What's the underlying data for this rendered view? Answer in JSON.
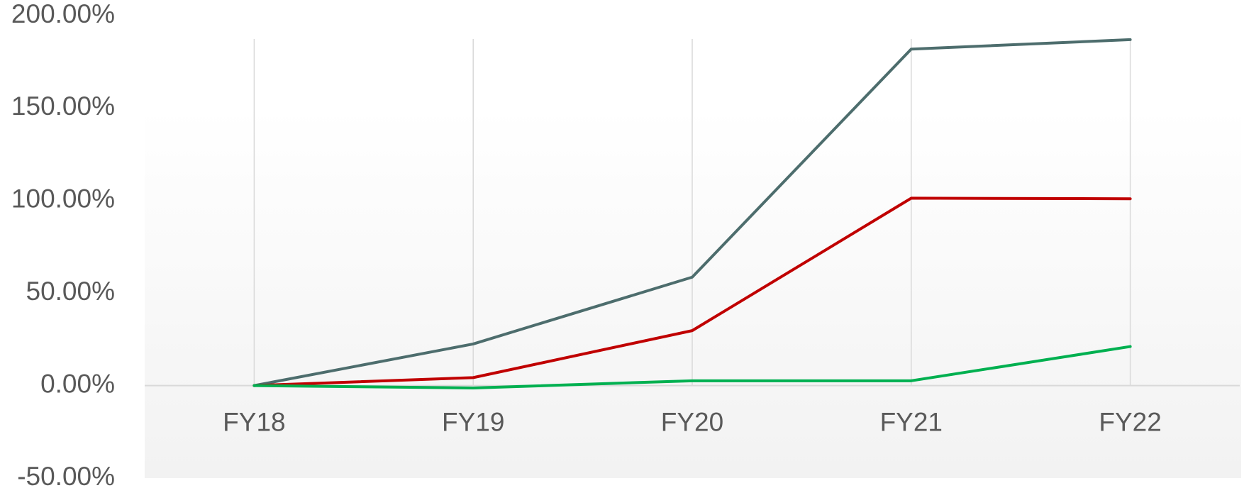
{
  "chart_data": {
    "type": "line",
    "categories": [
      "FY18",
      "FY19",
      "FY20",
      "FY21",
      "FY22"
    ],
    "series": [
      {
        "color": "#4d6d6d",
        "values": [
          0,
          22.5,
          58.6,
          181.9,
          187
        ]
      },
      {
        "color": "#c00000",
        "values": [
          0,
          4.3,
          29.7,
          101.3,
          101
        ]
      },
      {
        "color": "#00b050",
        "values": [
          0,
          -1.3,
          2.6,
          2.6,
          21.1
        ]
      }
    ],
    "ylim": [
      -50,
      200
    ],
    "yticks": [
      {
        "value": -50,
        "label": "-50.00%"
      },
      {
        "value": 0,
        "label": "0.00%"
      },
      {
        "value": 50,
        "label": "50.00%"
      },
      {
        "value": 100,
        "label": "100.00%"
      },
      {
        "value": 150,
        "label": "150.00%"
      },
      {
        "value": 200,
        "label": "200.00%"
      }
    ],
    "grid": false,
    "xgrid": true
  }
}
